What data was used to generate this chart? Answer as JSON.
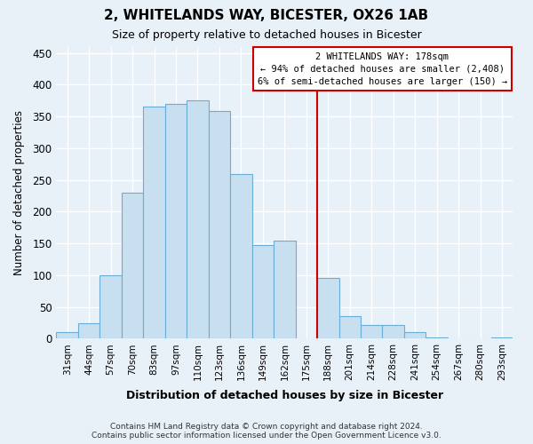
{
  "title": "2, WHITELANDS WAY, BICESTER, OX26 1AB",
  "subtitle": "Size of property relative to detached houses in Bicester",
  "xlabel": "Distribution of detached houses by size in Bicester",
  "ylabel": "Number of detached properties",
  "footnote1": "Contains HM Land Registry data © Crown copyright and database right 2024.",
  "footnote2": "Contains public sector information licensed under the Open Government Licence v3.0.",
  "bar_labels": [
    "31sqm",
    "44sqm",
    "57sqm",
    "70sqm",
    "83sqm",
    "97sqm",
    "110sqm",
    "123sqm",
    "136sqm",
    "149sqm",
    "162sqm",
    "175sqm",
    "188sqm",
    "201sqm",
    "214sqm",
    "228sqm",
    "241sqm",
    "254sqm",
    "267sqm",
    "280sqm",
    "293sqm"
  ],
  "bar_values": [
    10,
    25,
    100,
    230,
    365,
    370,
    375,
    358,
    260,
    148,
    155,
    0,
    96,
    35,
    22,
    22,
    10,
    2,
    1,
    0,
    2
  ],
  "bar_color": "#c8dff0",
  "bar_edge_color": "#6aaed6",
  "vline_x_index": 11,
  "vline_color": "#cc0000",
  "annotation_line1": "2 WHITELANDS WAY: 178sqm",
  "annotation_line2": "← 94% of detached houses are smaller (2,408)",
  "annotation_line3": "6% of semi-detached houses are larger (150) →",
  "annotation_box_edgecolor": "#cc0000",
  "ylim": [
    0,
    460
  ],
  "yticks": [
    0,
    50,
    100,
    150,
    200,
    250,
    300,
    350,
    400,
    450
  ],
  "background_color": "#e8f0f8",
  "grid_color": "#ffffff"
}
